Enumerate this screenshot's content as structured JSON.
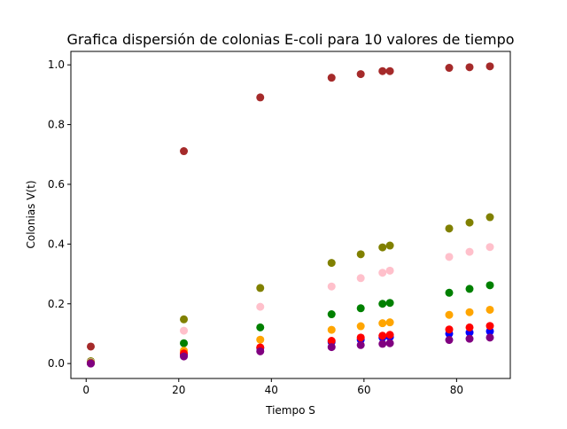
{
  "chart_data": {
    "type": "scatter",
    "title": "Grafica dispersión de colonias E-coli para 10 valores de tiempo",
    "xlabel": "Tiempo S",
    "ylabel": "Colonias V(t)",
    "xlim": [
      -3.3,
      91.6
    ],
    "ylim": [
      -0.05,
      1.045
    ],
    "xticks": [
      0,
      20,
      40,
      60,
      80
    ],
    "xtick_labels": [
      "0",
      "20",
      "40",
      "60",
      "80"
    ],
    "yticks": [
      0.0,
      0.2,
      0.4,
      0.6,
      0.8,
      1.0
    ],
    "ytick_labels": [
      "0.0",
      "0.2",
      "0.4",
      "0.6",
      "0.8",
      "1.0"
    ],
    "grid": false,
    "x": [
      1.0,
      21.1,
      37.6,
      53.0,
      59.3,
      64.0,
      65.6,
      78.4,
      82.8,
      87.2
    ],
    "series": [
      {
        "color": "#a52a2a",
        "values": [
          0.057,
          0.711,
          0.891,
          0.957,
          0.969,
          0.979,
          0.979,
          0.99,
          0.992,
          0.995
        ]
      },
      {
        "color": "#808000",
        "values": [
          0.008,
          0.148,
          0.253,
          0.337,
          0.366,
          0.389,
          0.395,
          0.452,
          0.472,
          0.49
        ]
      },
      {
        "color": "#ffc0cb",
        "values": [
          0.005,
          0.11,
          0.19,
          0.258,
          0.286,
          0.304,
          0.311,
          0.357,
          0.374,
          0.39
        ]
      },
      {
        "color": "#008000",
        "values": [
          0.003,
          0.068,
          0.121,
          0.165,
          0.185,
          0.2,
          0.203,
          0.237,
          0.25,
          0.262
        ]
      },
      {
        "color": "#ffa500",
        "values": [
          0.002,
          0.043,
          0.08,
          0.113,
          0.125,
          0.135,
          0.138,
          0.163,
          0.172,
          0.18
        ]
      },
      {
        "color": "#0000ff",
        "values": [
          0.001,
          0.03,
          0.052,
          0.072,
          0.08,
          0.087,
          0.089,
          0.1,
          0.104,
          0.108
        ]
      },
      {
        "color": "#ff0000",
        "values": [
          0.001,
          0.034,
          0.054,
          0.076,
          0.087,
          0.093,
          0.096,
          0.114,
          0.121,
          0.126
        ]
      },
      {
        "color": "#800080",
        "values": [
          0.0,
          0.024,
          0.041,
          0.055,
          0.062,
          0.066,
          0.068,
          0.079,
          0.083,
          0.087
        ]
      }
    ]
  }
}
